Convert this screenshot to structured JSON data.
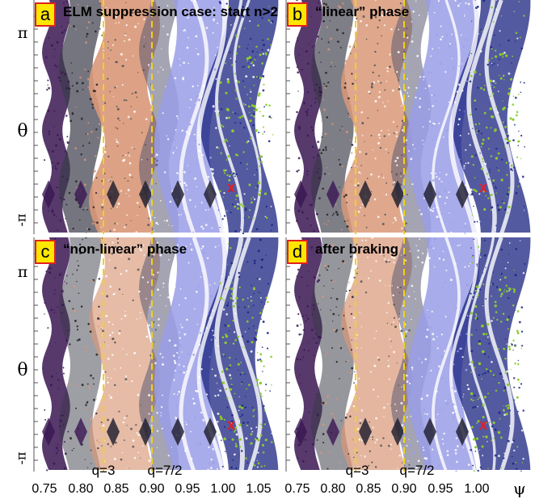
{
  "panels": [
    {
      "letter": "a",
      "title": "ELM suppression case: start n>2"
    },
    {
      "letter": "b",
      "title": "“linear” phase"
    },
    {
      "letter": "c",
      "title": "“non-linear” phase"
    },
    {
      "letter": "d",
      "title": "after braking"
    }
  ],
  "y_axis": {
    "label": "θ",
    "top": "π",
    "bottom": "-π"
  },
  "x_axis": {
    "label": "ψ",
    "ticks": [
      "0.75",
      "0.80",
      "0.85",
      "0.90",
      "0.95",
      "1.00",
      "1.05"
    ]
  },
  "q_markers": [
    "q=3",
    "q=7/2"
  ],
  "x_marker": "x",
  "colors": {
    "q_line": "#f2d21b",
    "marker": "#e0202a",
    "badge_fill": "#ffe600",
    "badge_border": "#e02020",
    "purple": "#3a1652",
    "salmon": "#d99878",
    "lavender": "#9a9ee6",
    "navy": "#1a2380",
    "green": "#8ccc2c"
  }
}
